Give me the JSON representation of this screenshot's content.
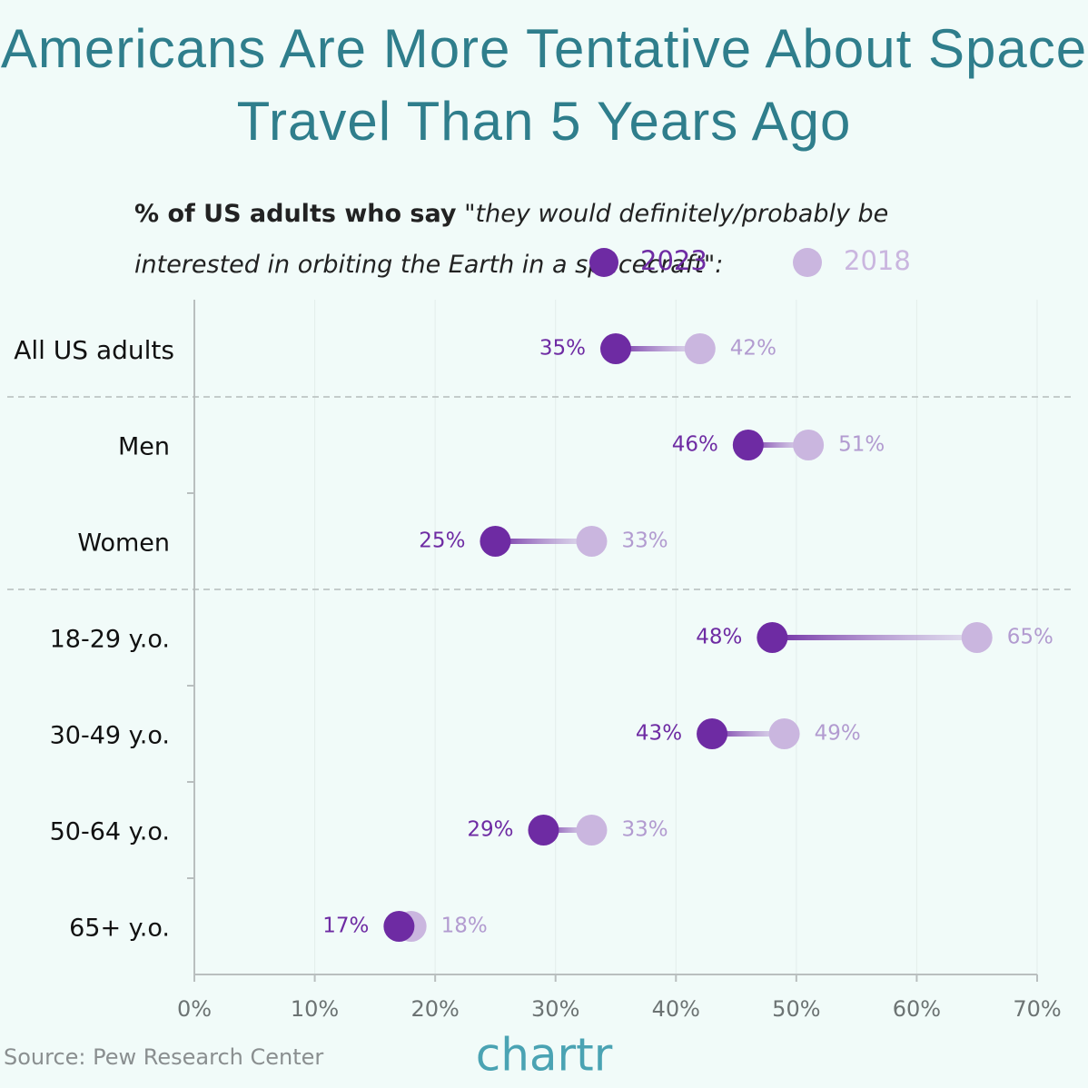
{
  "chart_data": {
    "type": "dumbbell",
    "title": "Americans Are More Tentative About Space Travel Than 5 Years Ago",
    "subtitle_lead": "% of US adults who say",
    "subtitle_quote": "\"they would definitely/probably be interested in orbiting the Earth in a spacecraft\":",
    "categories": [
      "All US adults",
      "Men",
      "Women",
      "18-29 y.o.",
      "30-49 y.o.",
      "50-64 y.o.",
      "65+ y.o."
    ],
    "series": [
      {
        "name": "2023",
        "color": "#6e2ba3",
        "values": [
          35,
          46,
          25,
          48,
          43,
          29,
          17
        ],
        "value_labels": [
          "35%",
          "46%",
          "25%",
          "48%",
          "43%",
          "29%",
          "17%"
        ]
      },
      {
        "name": "2018",
        "color": "#cab6df",
        "values": [
          42,
          51,
          33,
          65,
          49,
          33,
          18
        ],
        "value_labels": [
          "42%",
          "51%",
          "33%",
          "65%",
          "49%",
          "33%",
          "18%"
        ]
      }
    ],
    "xlim": [
      0,
      70
    ],
    "xticks": [
      {
        "value": 0,
        "label": "0%"
      },
      {
        "value": 10,
        "label": "10%"
      },
      {
        "value": 20,
        "label": "20%"
      },
      {
        "value": 30,
        "label": "30%"
      },
      {
        "value": 40,
        "label": "40%"
      },
      {
        "value": 50,
        "label": "50%"
      },
      {
        "value": 60,
        "label": "60%"
      },
      {
        "value": 70,
        "label": "70%"
      }
    ],
    "grid": true,
    "source": "Source: Pew Research Center",
    "brand": "chartr"
  }
}
